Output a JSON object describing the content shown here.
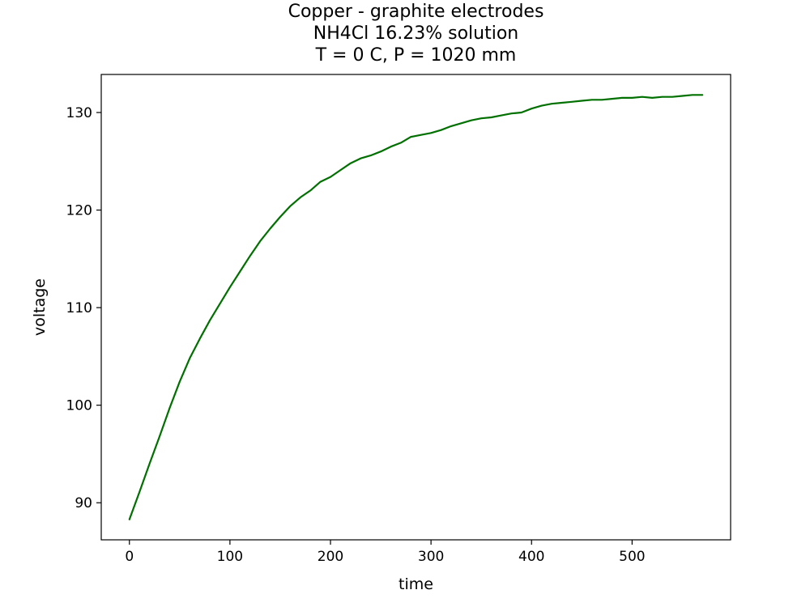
{
  "chart_data": {
    "type": "line",
    "title": [
      "Copper - graphite electrodes",
      "NH4Cl 16.23% solution",
      "T = 0 C, P = 1020 mm"
    ],
    "xlabel": "time",
    "ylabel": "voltage",
    "xlim": [
      -28,
      598
    ],
    "ylim": [
      86.2,
      133.9
    ],
    "xticks": [
      0,
      100,
      200,
      300,
      400,
      500
    ],
    "yticks": [
      90,
      100,
      110,
      120,
      130
    ],
    "grid": false,
    "legend": "none",
    "series": [
      {
        "color": "#007000",
        "x": [
          0,
          10,
          20,
          30,
          40,
          50,
          60,
          70,
          80,
          90,
          100,
          110,
          120,
          130,
          140,
          150,
          160,
          170,
          180,
          190,
          200,
          210,
          220,
          230,
          240,
          250,
          260,
          270,
          280,
          290,
          300,
          310,
          320,
          330,
          340,
          350,
          360,
          370,
          380,
          390,
          400,
          410,
          420,
          430,
          440,
          450,
          460,
          470,
          480,
          490,
          500,
          510,
          520,
          530,
          540,
          550,
          560,
          570
        ],
        "y": [
          88.3,
          91.1,
          94.0,
          96.8,
          99.7,
          102.4,
          104.8,
          106.8,
          108.7,
          110.4,
          112.1,
          113.7,
          115.3,
          116.8,
          118.1,
          119.3,
          120.4,
          121.3,
          122.0,
          122.9,
          123.4,
          124.1,
          124.8,
          125.3,
          125.6,
          126.0,
          126.5,
          126.9,
          127.5,
          127.7,
          127.9,
          128.2,
          128.6,
          128.9,
          129.2,
          129.4,
          129.5,
          129.7,
          129.9,
          130.0,
          130.4,
          130.7,
          130.9,
          131.0,
          131.1,
          131.2,
          131.3,
          131.3,
          131.4,
          131.5,
          131.5,
          131.6,
          131.5,
          131.6,
          131.6,
          131.7,
          131.8,
          131.8
        ]
      }
    ]
  }
}
